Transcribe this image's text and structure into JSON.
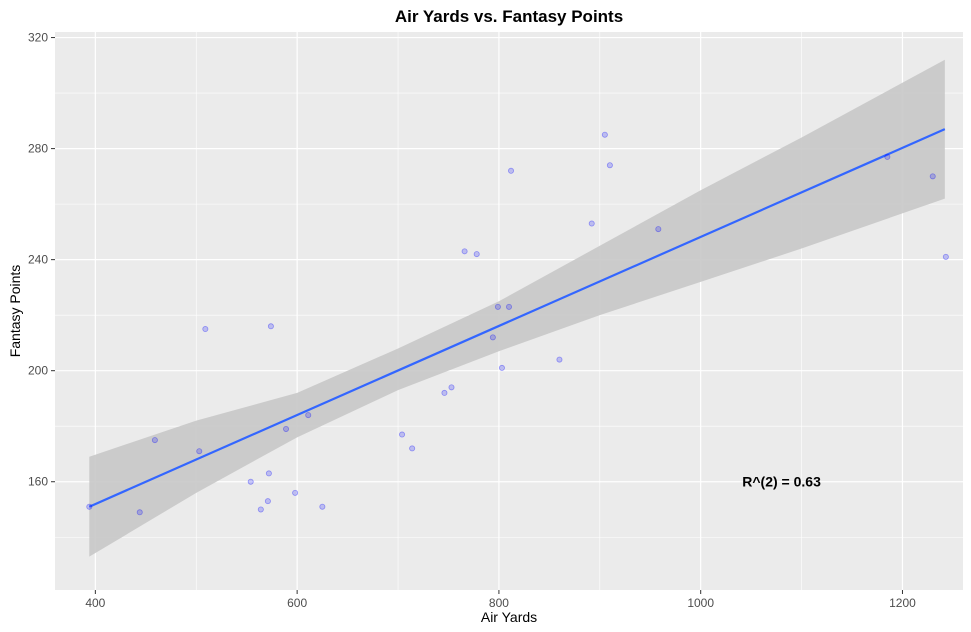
{
  "chart_data": {
    "type": "scatter",
    "title": "Air Yards vs. Fantasy Points",
    "xlabel": "Air Yards",
    "ylabel": "Fantasy Points",
    "xlim": [
      360,
      1260
    ],
    "ylim": [
      121,
      322
    ],
    "x_ticks": [
      400,
      600,
      800,
      1000,
      1200
    ],
    "y_ticks": [
      160,
      200,
      240,
      280,
      320
    ],
    "grid": true,
    "legend": "none",
    "annotation": {
      "text": "R^(2) = 0.63",
      "x": 1100,
      "y": 160
    },
    "colors": {
      "panel": "#ebebeb",
      "grid": "#ffffff",
      "points": "#0000ff",
      "line": "#3366ff",
      "band": "#c8c8c8"
    },
    "points": [
      {
        "x": 394,
        "y": 151
      },
      {
        "x": 444,
        "y": 149
      },
      {
        "x": 459,
        "y": 175
      },
      {
        "x": 503,
        "y": 171
      },
      {
        "x": 509,
        "y": 215
      },
      {
        "x": 554,
        "y": 160
      },
      {
        "x": 564,
        "y": 150
      },
      {
        "x": 571,
        "y": 153
      },
      {
        "x": 572,
        "y": 163
      },
      {
        "x": 574,
        "y": 216
      },
      {
        "x": 589,
        "y": 179
      },
      {
        "x": 598,
        "y": 156
      },
      {
        "x": 611,
        "y": 184
      },
      {
        "x": 625,
        "y": 151
      },
      {
        "x": 704,
        "y": 177
      },
      {
        "x": 714,
        "y": 172
      },
      {
        "x": 746,
        "y": 192
      },
      {
        "x": 753,
        "y": 194
      },
      {
        "x": 766,
        "y": 243
      },
      {
        "x": 778,
        "y": 242
      },
      {
        "x": 794,
        "y": 212
      },
      {
        "x": 799,
        "y": 223
      },
      {
        "x": 803,
        "y": 201
      },
      {
        "x": 810,
        "y": 223
      },
      {
        "x": 812,
        "y": 272
      },
      {
        "x": 860,
        "y": 204
      },
      {
        "x": 892,
        "y": 253
      },
      {
        "x": 905,
        "y": 285
      },
      {
        "x": 910,
        "y": 274
      },
      {
        "x": 958,
        "y": 251
      },
      {
        "x": 1185,
        "y": 277
      },
      {
        "x": 1230,
        "y": 270
      },
      {
        "x": 1243,
        "y": 241
      }
    ],
    "fit_line": {
      "x": [
        394,
        1242
      ],
      "y": [
        151,
        287
      ]
    },
    "confidence_band": {
      "x": [
        394,
        500,
        600,
        700,
        800,
        900,
        1000,
        1100,
        1242
      ],
      "lower": [
        133,
        156,
        176,
        193,
        207,
        220,
        232,
        244,
        262
      ],
      "upper": [
        169,
        182,
        192,
        208,
        225,
        245,
        265,
        284,
        312
      ]
    }
  }
}
